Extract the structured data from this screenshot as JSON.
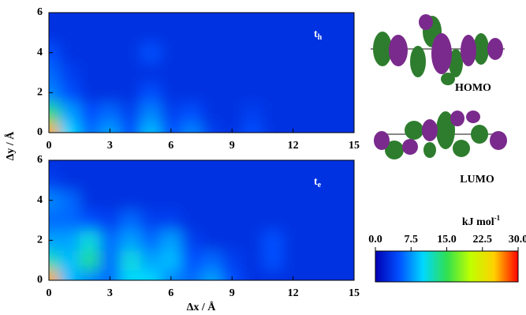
{
  "chart_data": [
    {
      "type": "contour",
      "label_main": "t",
      "label_sub": "h",
      "x": [
        0,
        1,
        2,
        3,
        4,
        5,
        6,
        7,
        8,
        9,
        10,
        11,
        12,
        13,
        14,
        15
      ],
      "y": [
        0,
        1,
        2,
        3,
        4,
        5,
        6
      ],
      "z": [
        [
          26,
          10,
          6,
          8,
          5,
          9,
          5,
          7,
          4,
          3,
          5,
          3,
          3,
          3,
          3,
          3
        ],
        [
          14,
          8,
          5,
          6,
          4,
          7,
          4,
          5,
          3,
          3,
          4,
          3,
          3,
          3,
          3,
          3
        ],
        [
          7,
          5,
          3,
          3,
          3,
          5,
          3,
          3,
          3,
          3,
          3,
          3,
          3,
          3,
          3,
          3
        ],
        [
          6,
          4,
          3,
          3,
          3,
          3,
          3,
          3,
          3,
          3,
          3,
          3,
          3,
          3,
          3,
          3
        ],
        [
          5,
          3,
          3,
          3,
          3,
          5,
          3,
          3,
          3,
          3,
          3,
          3,
          3,
          3,
          3,
          3
        ],
        [
          3,
          3,
          3,
          3,
          3,
          3,
          3,
          3,
          3,
          3,
          3,
          3,
          3,
          3,
          3,
          3
        ],
        [
          3,
          3,
          3,
          3,
          3,
          3,
          3,
          3,
          3,
          3,
          3,
          3,
          3,
          3,
          3,
          3
        ]
      ],
      "xlim": [
        0,
        15
      ],
      "ylim": [
        0,
        6
      ],
      "xticks": [
        0,
        3,
        6,
        9,
        12,
        15
      ],
      "yticks": [
        0,
        2,
        4,
        6
      ]
    },
    {
      "type": "contour",
      "label_main": "t",
      "label_sub": "e",
      "x": [
        0,
        1,
        2,
        3,
        4,
        5,
        6,
        7,
        8,
        9,
        10,
        11,
        12,
        13,
        14,
        15
      ],
      "y": [
        0,
        1,
        2,
        3,
        4,
        5,
        6
      ],
      "z": [
        [
          26,
          9,
          7,
          6,
          10,
          10,
          7,
          6,
          8,
          5,
          3,
          3,
          3,
          3,
          3,
          3
        ],
        [
          12,
          9,
          13,
          6,
          11,
          8,
          9,
          5,
          6,
          4,
          3,
          5,
          3,
          3,
          3,
          3
        ],
        [
          8,
          8,
          11,
          6,
          8,
          6,
          8,
          4,
          3,
          3,
          3,
          5,
          3,
          3,
          3,
          3
        ],
        [
          6,
          6,
          5,
          4,
          6,
          4,
          4,
          3,
          3,
          3,
          3,
          3,
          3,
          3,
          3,
          3
        ],
        [
          7,
          6,
          3,
          3,
          3,
          3,
          3,
          3,
          3,
          3,
          3,
          3,
          3,
          3,
          3,
          3
        ],
        [
          4,
          3,
          3,
          3,
          3,
          3,
          3,
          3,
          3,
          3,
          3,
          3,
          3,
          3,
          3,
          3
        ],
        [
          3,
          3,
          3,
          3,
          3,
          3,
          3,
          3,
          3,
          3,
          3,
          3,
          3,
          3,
          3,
          3
        ]
      ],
      "xlim": [
        0,
        15
      ],
      "ylim": [
        0,
        6
      ],
      "xticks": [
        0,
        3,
        6,
        9,
        12,
        15
      ],
      "yticks": [
        0,
        2,
        4,
        6
      ]
    }
  ],
  "axis_labels": {
    "x": "Δx / Å",
    "y": "Δy / Å"
  },
  "colorbar": {
    "label": "kJ mol",
    "label_sup": "-1",
    "clim": [
      0,
      30
    ],
    "colors": [
      "#0000b4",
      "#0050ff",
      "#00d8ff",
      "#30e050",
      "#c0ff00",
      "#ffd000",
      "#ff0000"
    ],
    "ticks": [
      {
        "value": 0,
        "label": "0.0"
      },
      7.5,
      {
        "value": 15,
        "label": "15.0"
      },
      22.5,
      {
        "value": 30,
        "label": "30.0"
      }
    ]
  },
  "orbitals": {
    "homo": "HOMO",
    "lumo": "LUMO"
  }
}
